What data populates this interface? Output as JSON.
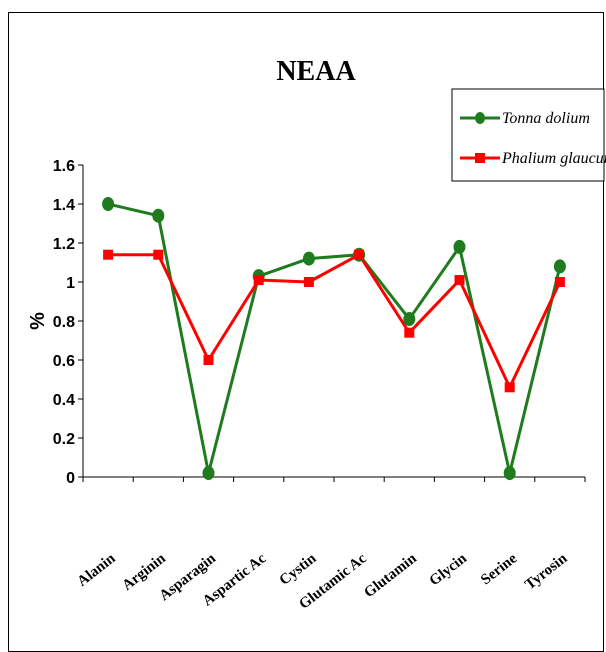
{
  "chart_data": {
    "type": "line",
    "title": "NEAA",
    "ylabel": "%",
    "xlabel": "",
    "ylim": [
      0,
      1.6
    ],
    "yticks": [
      "0",
      "0.2",
      "0.4",
      "0.6",
      "0.8",
      "1",
      "1.2",
      "1.4",
      "1.6"
    ],
    "categories": [
      "Alanine",
      "Arginine",
      "Asparagine",
      "Aspartic Acid",
      "Cystine",
      "Glutamic Acid",
      "Glutamine",
      "Glycine",
      "Serine",
      "Tyrosine"
    ],
    "category_labels_visible": [
      "Alanin",
      "Arginin",
      "Asparagin",
      "Aspartic Ac",
      "Cystin",
      "Glutamic Ac",
      "Glutamin",
      "Glycin",
      "Serine",
      "Tyrosin"
    ],
    "grid": false,
    "legend_position": "top-right",
    "series": [
      {
        "name": "Tonna dolium",
        "color": "#1e7b1e",
        "marker": "circle",
        "values": [
          1.4,
          1.34,
          0.02,
          1.03,
          1.12,
          1.14,
          0.81,
          1.18,
          0.02,
          1.08
        ]
      },
      {
        "name": "Phalium glaucum",
        "color": "#ff0000",
        "marker": "square",
        "values": [
          1.14,
          1.14,
          0.6,
          1.01,
          1.0,
          1.14,
          0.74,
          1.01,
          0.46,
          1.0
        ]
      }
    ]
  }
}
